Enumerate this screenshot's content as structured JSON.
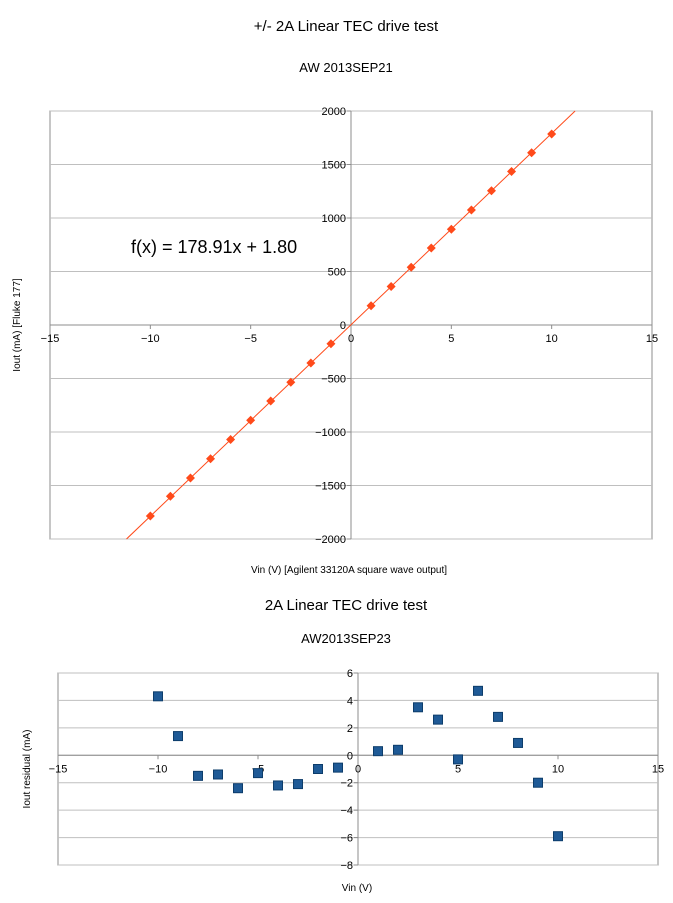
{
  "colors": {
    "chart1_series": "#ff4a1a",
    "chart2_series": "#1f5a96",
    "grid": "#bfbfbf",
    "axis": "#8c8c8c"
  },
  "chart_data": [
    {
      "type": "scatter",
      "title": "+/- 2A Linear TEC drive test",
      "subtitle": "AW 2013SEP21",
      "xlabel": "Vin (V) [Agilent 33120A square wave output]",
      "ylabel": "Iout (mA) [Fluke 177]",
      "xlim": [
        -15,
        15
      ],
      "ylim": [
        -2000,
        2000
      ],
      "xticks": [
        -15,
        -10,
        -5,
        0,
        5,
        10,
        15
      ],
      "yticks": [
        -2000,
        -1500,
        -1000,
        -500,
        0,
        500,
        1000,
        1500,
        2000
      ],
      "grid": true,
      "marker": "diamond",
      "trendline": {
        "slope": 178.91,
        "intercept": 1.8,
        "label": "f(x) = 178.91x + 1.80"
      },
      "series": [
        {
          "x": [
            -10,
            -9,
            -8,
            -7,
            -6,
            -5,
            -4,
            -3,
            -2,
            -1,
            1,
            2,
            3,
            4,
            5,
            6,
            7,
            8,
            9,
            10
          ],
          "y": [
            -1785,
            -1600,
            -1430,
            -1250,
            -1070,
            -890,
            -710,
            -535,
            -355,
            -175,
            180,
            360,
            540,
            720,
            895,
            1075,
            1255,
            1435,
            1610,
            1785
          ]
        }
      ]
    },
    {
      "type": "scatter",
      "title": "2A Linear TEC drive test",
      "subtitle": "AW2013SEP23",
      "xlabel": "Vin (V)",
      "ylabel": "Iout residual (mA)",
      "xlim": [
        -15,
        15
      ],
      "ylim": [
        -8,
        6
      ],
      "xticks": [
        -15,
        -10,
        -5,
        0,
        5,
        10,
        15
      ],
      "yticks": [
        -8,
        -6,
        -4,
        -2,
        0,
        2,
        4,
        6
      ],
      "grid": true,
      "marker": "square",
      "series": [
        {
          "x": [
            -10,
            -9,
            -8,
            -7,
            -6,
            -5,
            -4,
            -3,
            -2,
            -1,
            1,
            2,
            3,
            4,
            5,
            6,
            7,
            8,
            9,
            10
          ],
          "y": [
            4.3,
            1.4,
            -1.5,
            -1.4,
            -2.4,
            -1.3,
            -2.2,
            -2.1,
            -1.0,
            -0.9,
            0.3,
            0.4,
            3.5,
            2.6,
            -0.3,
            4.7,
            2.8,
            0.9,
            -2.0,
            -5.9
          ]
        }
      ]
    }
  ]
}
